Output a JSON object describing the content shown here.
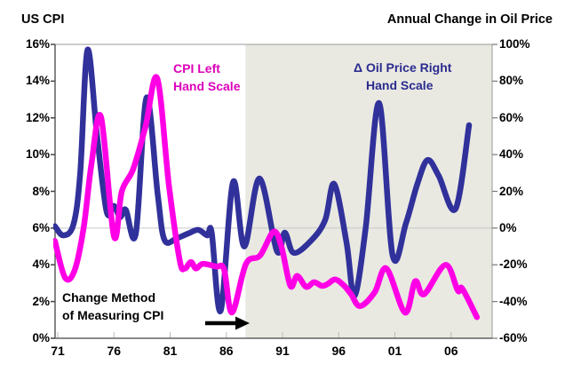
{
  "titles": {
    "left": "US CPI",
    "right": "Annual Change in Oil Price"
  },
  "series_labels": {
    "cpi": {
      "line1": "CPI Left",
      "line2": "Hand Scale",
      "color": "#DD00BB"
    },
    "oil": {
      "line1": "Δ Oil Price Right",
      "line2": "Hand Scale",
      "color": "#2B2B8F"
    }
  },
  "annotation": {
    "line1": "Change Method",
    "line2": "of Measuring CPI",
    "arrow": "right-arrow"
  },
  "colors": {
    "cpi_line": "#FF00E6",
    "oil_line": "#31319B",
    "shaded_region": "#E9E9E2",
    "gridline": "#C6C6C6",
    "axis_dark": "#444444",
    "axis_light": "#999999",
    "background": "#FFFFFF",
    "text": "#000000"
  },
  "chart_data": {
    "type": "line",
    "title_left": "US CPI",
    "title_right": "Annual Change in Oil Price",
    "x_axis": {
      "tick_labels": [
        "71",
        "76",
        "81",
        "86",
        "91",
        "96",
        "01",
        "06"
      ],
      "tick_years": [
        1971,
        1976,
        1981,
        1986,
        1991,
        1996,
        2001,
        2006
      ],
      "range_years": [
        1970.75,
        2009.6
      ]
    },
    "left_axis": {
      "label": "US CPI",
      "tick_labels": [
        "16%",
        "14%",
        "12%",
        "10%",
        "8%",
        "6%",
        "4%",
        "2%",
        "0%"
      ],
      "min": 0,
      "max": 16
    },
    "right_axis": {
      "label": "Annual Change in Oil Price",
      "tick_labels": [
        "100%",
        "80%",
        "60%",
        "40%",
        "20%",
        "0%",
        "-20%",
        "-40%",
        "-60%"
      ],
      "min": -60,
      "max": 100
    },
    "grid": "single horizontal gridline at right-axis 0%",
    "shaded_region": {
      "start_year": 1987.7,
      "end_year": 2009.6
    },
    "series": [
      {
        "name": "Annual Change in Oil Price",
        "axis": "right",
        "color": "#31319B",
        "points": [
          [
            1970.75,
            1
          ],
          [
            1971.5,
            -4
          ],
          [
            1972.4,
            2
          ],
          [
            1973.0,
            30
          ],
          [
            1973.65,
            97
          ],
          [
            1974.5,
            50
          ],
          [
            1975.35,
            9
          ],
          [
            1976.0,
            12
          ],
          [
            1976.55,
            6
          ],
          [
            1977.05,
            10
          ],
          [
            1977.95,
            -3
          ],
          [
            1978.9,
            71
          ],
          [
            1979.9,
            18
          ],
          [
            1980.5,
            -6.5
          ],
          [
            1981.6,
            -5.5
          ],
          [
            1982.6,
            -3
          ],
          [
            1983.5,
            -1
          ],
          [
            1984.3,
            -4
          ],
          [
            1984.7,
            -2.5
          ],
          [
            1985.5,
            -45
          ],
          [
            1986.6,
            25
          ],
          [
            1987.6,
            -10
          ],
          [
            1988.95,
            27
          ],
          [
            1990.5,
            -12.5
          ],
          [
            1991.2,
            -2.5
          ],
          [
            1992.0,
            -13.5
          ],
          [
            1993.6,
            -6.5
          ],
          [
            1994.8,
            4.5
          ],
          [
            1995.6,
            24
          ],
          [
            1996.7,
            -8
          ],
          [
            1997.4,
            -37
          ],
          [
            1998.4,
            0
          ],
          [
            1999.6,
            68
          ],
          [
            2000.8,
            -15
          ],
          [
            2002.0,
            3
          ],
          [
            2003.0,
            24
          ],
          [
            2003.9,
            37
          ],
          [
            2004.9,
            28.5
          ],
          [
            2006.4,
            10.5
          ],
          [
            2007.6,
            56
          ]
        ]
      },
      {
        "name": "US CPI",
        "axis": "left",
        "color": "#FF00E6",
        "points": [
          [
            1970.75,
            5.3
          ],
          [
            1971.65,
            3.3
          ],
          [
            1972.5,
            3.7
          ],
          [
            1973.3,
            6.0
          ],
          [
            1974.0,
            9.5
          ],
          [
            1974.85,
            12.05
          ],
          [
            1976.0,
            5.55
          ],
          [
            1976.7,
            8.0
          ],
          [
            1977.7,
            9.2
          ],
          [
            1978.8,
            11.5
          ],
          [
            1979.85,
            14.15
          ],
          [
            1980.9,
            8.3
          ],
          [
            1981.85,
            4.25
          ],
          [
            1982.3,
            3.8
          ],
          [
            1982.85,
            4.15
          ],
          [
            1983.3,
            3.8
          ],
          [
            1983.9,
            4.05
          ],
          [
            1985.1,
            3.9
          ],
          [
            1985.8,
            3.75
          ],
          [
            1986.5,
            1.4
          ],
          [
            1987.75,
            4.05
          ],
          [
            1989.0,
            4.5
          ],
          [
            1990.2,
            5.8
          ],
          [
            1990.9,
            5.0
          ],
          [
            1991.7,
            2.85
          ],
          [
            1992.3,
            3.4
          ],
          [
            1993.1,
            2.8
          ],
          [
            1993.8,
            3.05
          ],
          [
            1994.5,
            2.85
          ],
          [
            1995.0,
            2.95
          ],
          [
            1995.7,
            3.2
          ],
          [
            1996.5,
            2.85
          ],
          [
            1997.1,
            2.4
          ],
          [
            1997.9,
            1.75
          ],
          [
            1999.2,
            2.5
          ],
          [
            2000.25,
            3.8
          ],
          [
            2001.9,
            1.4
          ],
          [
            2002.8,
            3.1
          ],
          [
            2003.6,
            2.4
          ],
          [
            2005.5,
            4.0
          ],
          [
            2006.6,
            2.6
          ],
          [
            2007.0,
            2.7
          ],
          [
            2008.3,
            1.15
          ]
        ]
      }
    ]
  }
}
